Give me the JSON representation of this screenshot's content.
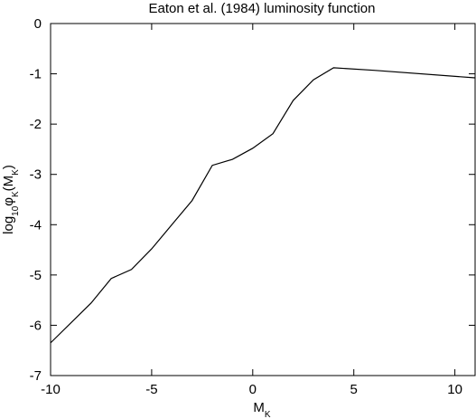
{
  "chart_data": {
    "type": "line",
    "title": "Eaton et al. (1984) luminosity function",
    "xlabel": [
      "M",
      "K"
    ],
    "ylabel": [
      "log",
      "10",
      "φ",
      "K",
      "(M",
      "K",
      ")"
    ],
    "x": [
      -10,
      -8,
      -7,
      -6,
      -5,
      -4,
      -3,
      -2,
      -1,
      0,
      1,
      2,
      3,
      4,
      6,
      11
    ],
    "series": [
      {
        "color": "#000000",
        "values": [
          -6.35,
          -5.56,
          -5.07,
          -4.89,
          -4.48,
          -4.0,
          -3.52,
          -2.82,
          -2.7,
          -2.48,
          -2.19,
          -1.53,
          -1.12,
          -0.88,
          -0.93,
          -1.08
        ]
      }
    ],
    "xlim": [
      -10,
      11
    ],
    "ylim": [
      -7,
      0
    ],
    "xticks": [
      -10,
      -5,
      0,
      5,
      10
    ],
    "yticks": [
      -7,
      -6,
      -5,
      -4,
      -3,
      -2,
      -1,
      0
    ]
  }
}
